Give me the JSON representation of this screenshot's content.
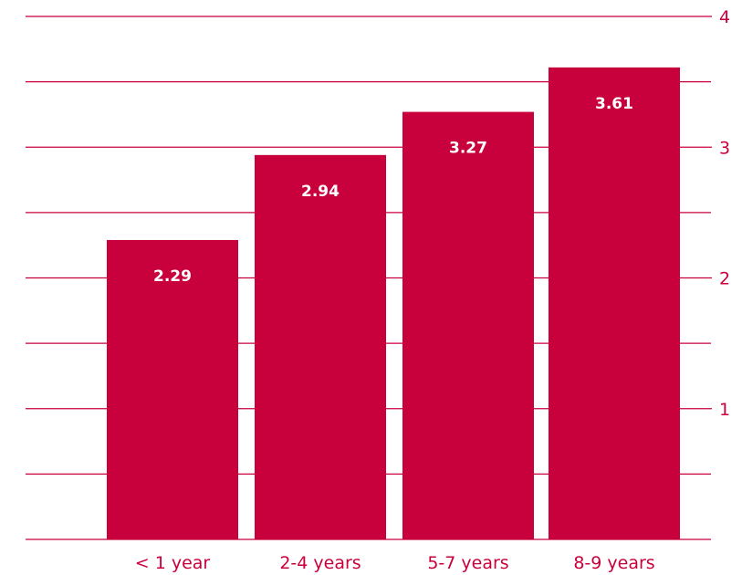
{
  "chart_data": {
    "type": "bar",
    "categories": [
      "< 1 year",
      "2-4 years",
      "5-7 years",
      "8-9 years"
    ],
    "values": [
      2.29,
      2.94,
      3.27,
      3.61
    ],
    "data_labels": [
      "2.29",
      "2.94",
      "3.27",
      "3.61"
    ],
    "ylim": [
      0,
      4
    ],
    "y_ticks": [
      1,
      2,
      3,
      4
    ],
    "y_gridlines": [
      0.5,
      1,
      1.5,
      2,
      2.5,
      3,
      3.5,
      4
    ],
    "y_axis_position": "right",
    "grid": true,
    "title": "",
    "xlabel": "",
    "ylabel": ""
  },
  "colors": {
    "bar": "#c8003c",
    "axis": "#c8003c",
    "background": "#ffffff",
    "label_text": "#ffffff"
  }
}
